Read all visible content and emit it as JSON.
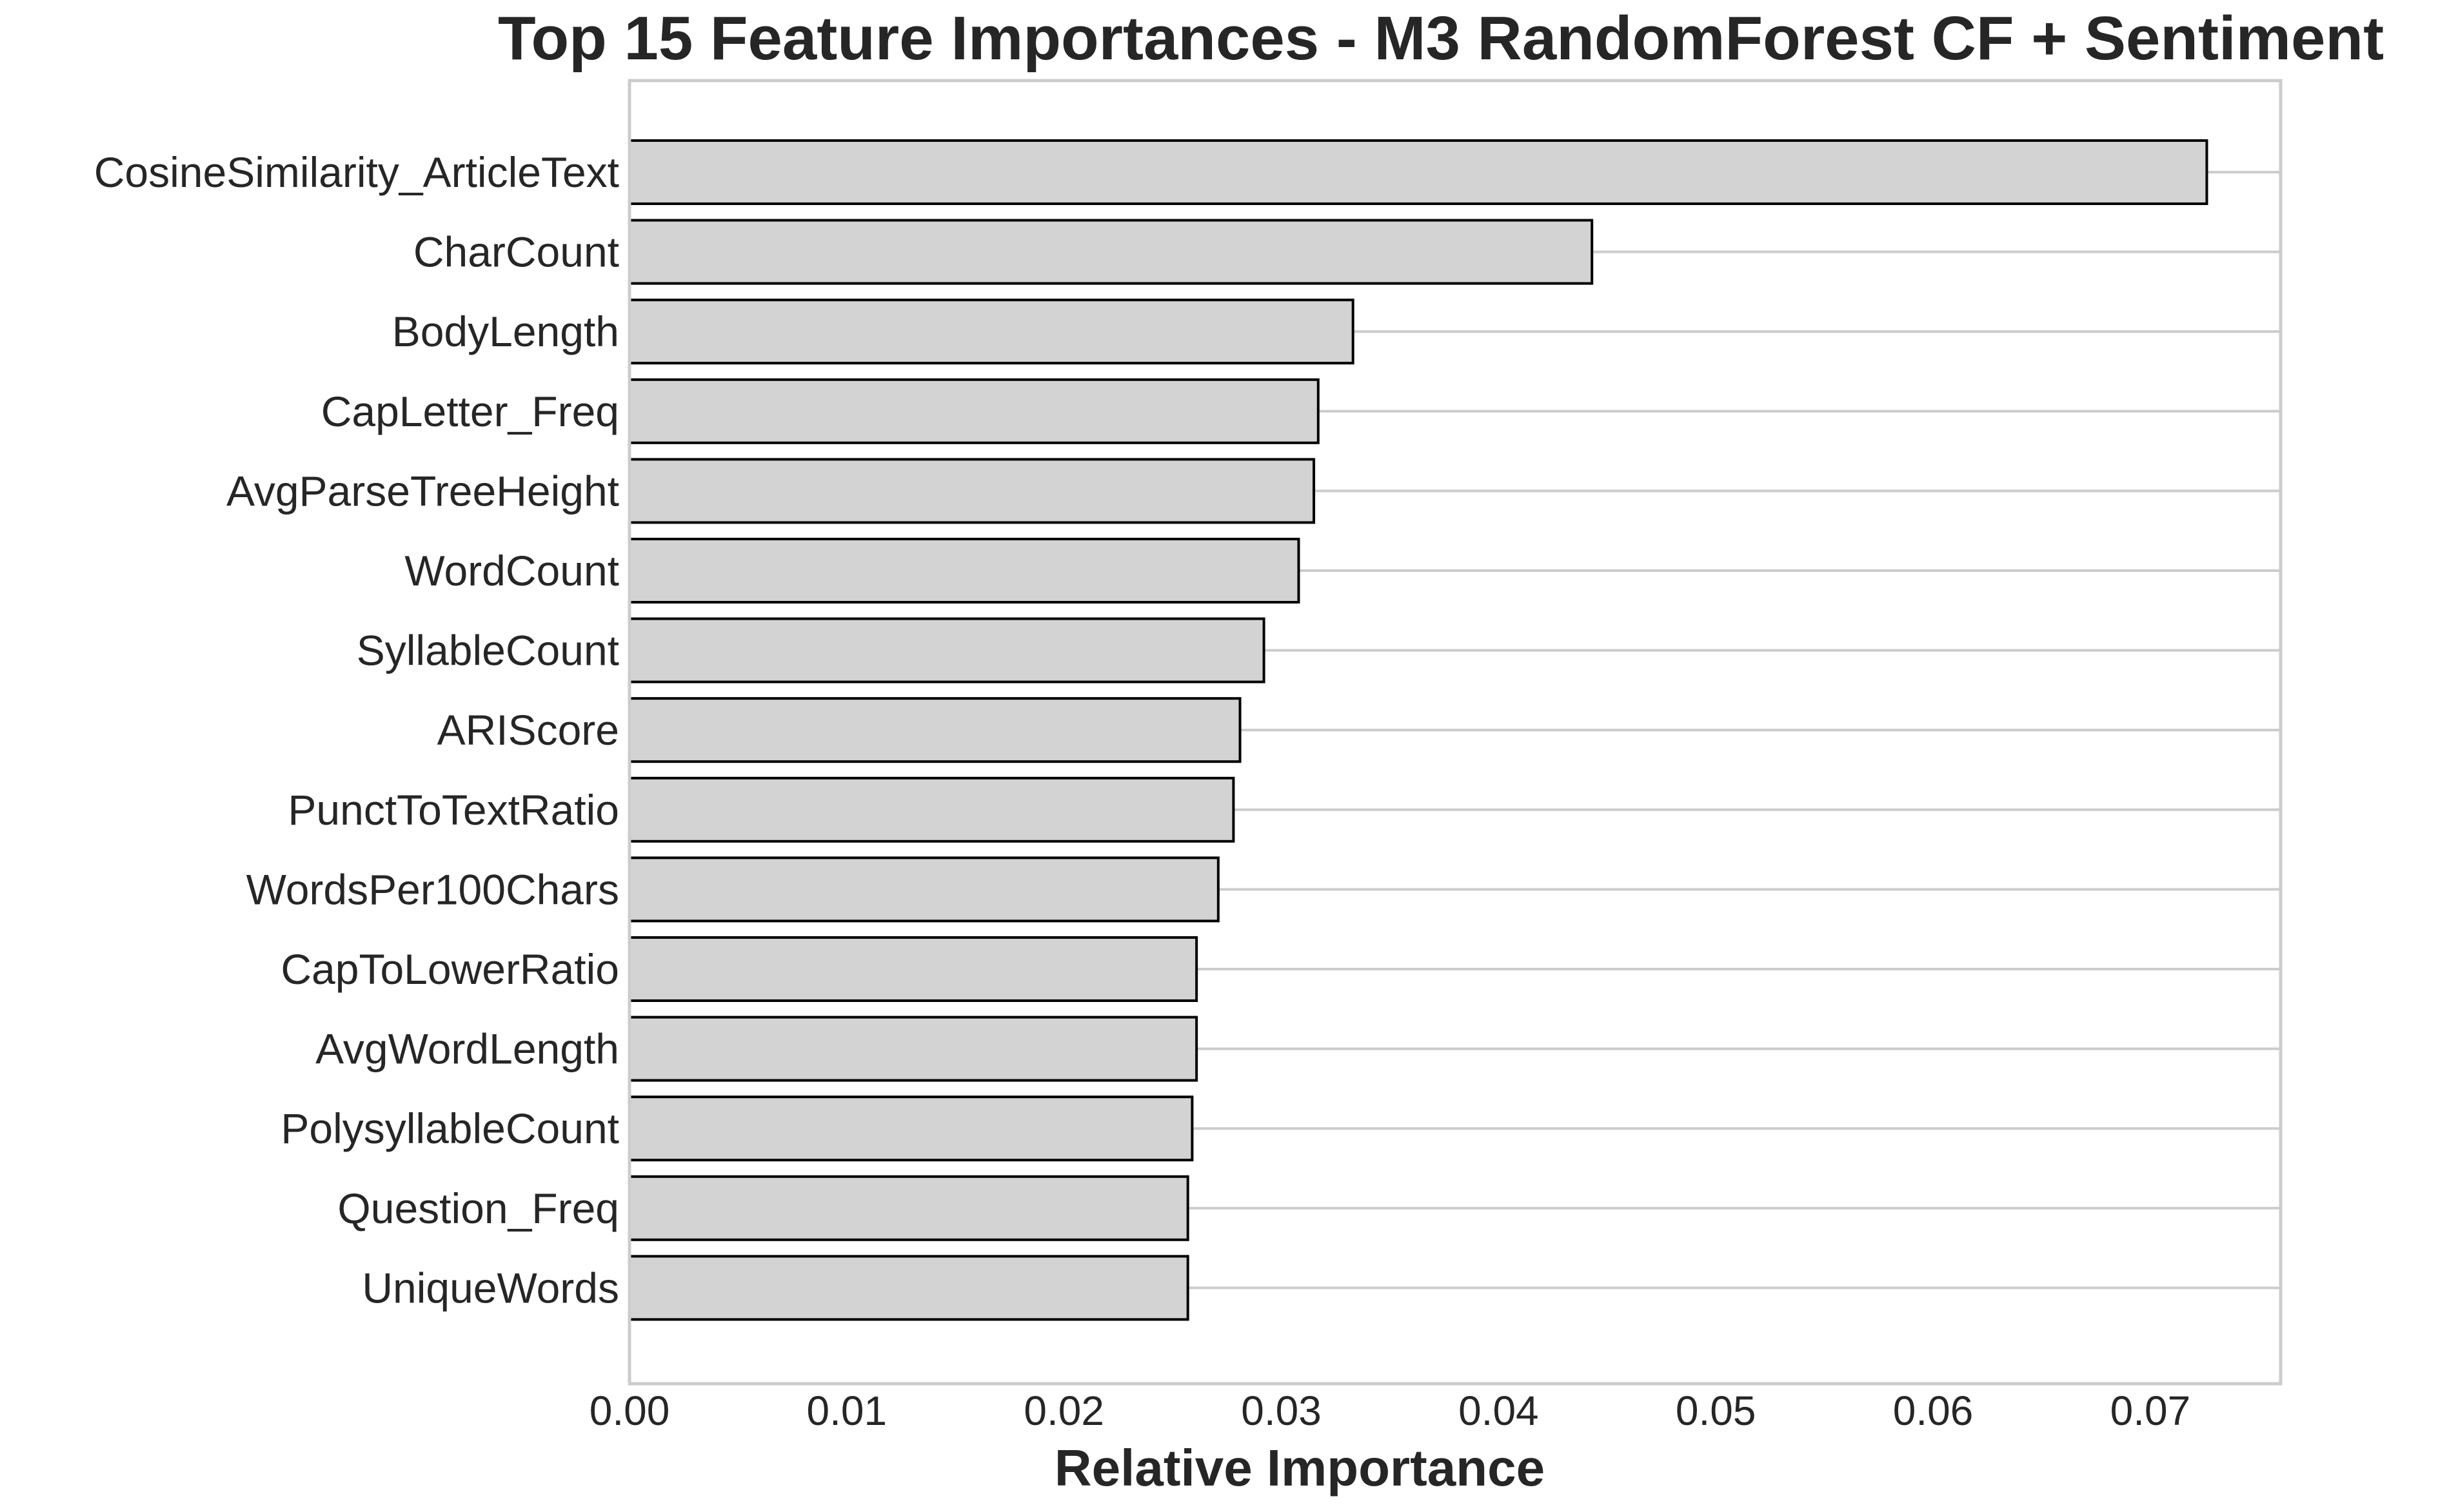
{
  "chart_data": {
    "type": "bar",
    "orientation": "horizontal",
    "title": "Top 15 Feature Importances - M3 RandomForest CF + Sentiment",
    "xlabel": "Relative Importance",
    "ylabel": "",
    "xlim": [
      0,
      0.076
    ],
    "xticks": [
      0.0,
      0.01,
      0.02,
      0.03,
      0.04,
      0.05,
      0.06,
      0.07
    ],
    "xtick_labels": [
      "0.00",
      "0.01",
      "0.02",
      "0.03",
      "0.04",
      "0.05",
      "0.06",
      "0.07"
    ],
    "grid": "horizontal lines at each bar",
    "categories": [
      "CosineSimilarity_ArticleText",
      "CharCount",
      "BodyLength",
      "CapLetter_Freq",
      "AvgParseTreeHeight",
      "WordCount",
      "SyllableCount",
      "ARIScore",
      "PunctToTextRatio",
      "WordsPer100Chars",
      "CapToLowerRatio",
      "AvgWordLength",
      "PolysyllableCount",
      "Question_Freq",
      "UniqueWords"
    ],
    "values": [
      0.0726,
      0.0443,
      0.0333,
      0.0317,
      0.0315,
      0.0308,
      0.0292,
      0.0281,
      0.0278,
      0.0271,
      0.0261,
      0.0261,
      0.0259,
      0.0257,
      0.0257
    ],
    "colors": {
      "bar_fill": "#d3d3d3",
      "bar_edge": "#000000",
      "grid": "#cccccc",
      "frame": "#cccccc",
      "text": "#262626"
    }
  }
}
